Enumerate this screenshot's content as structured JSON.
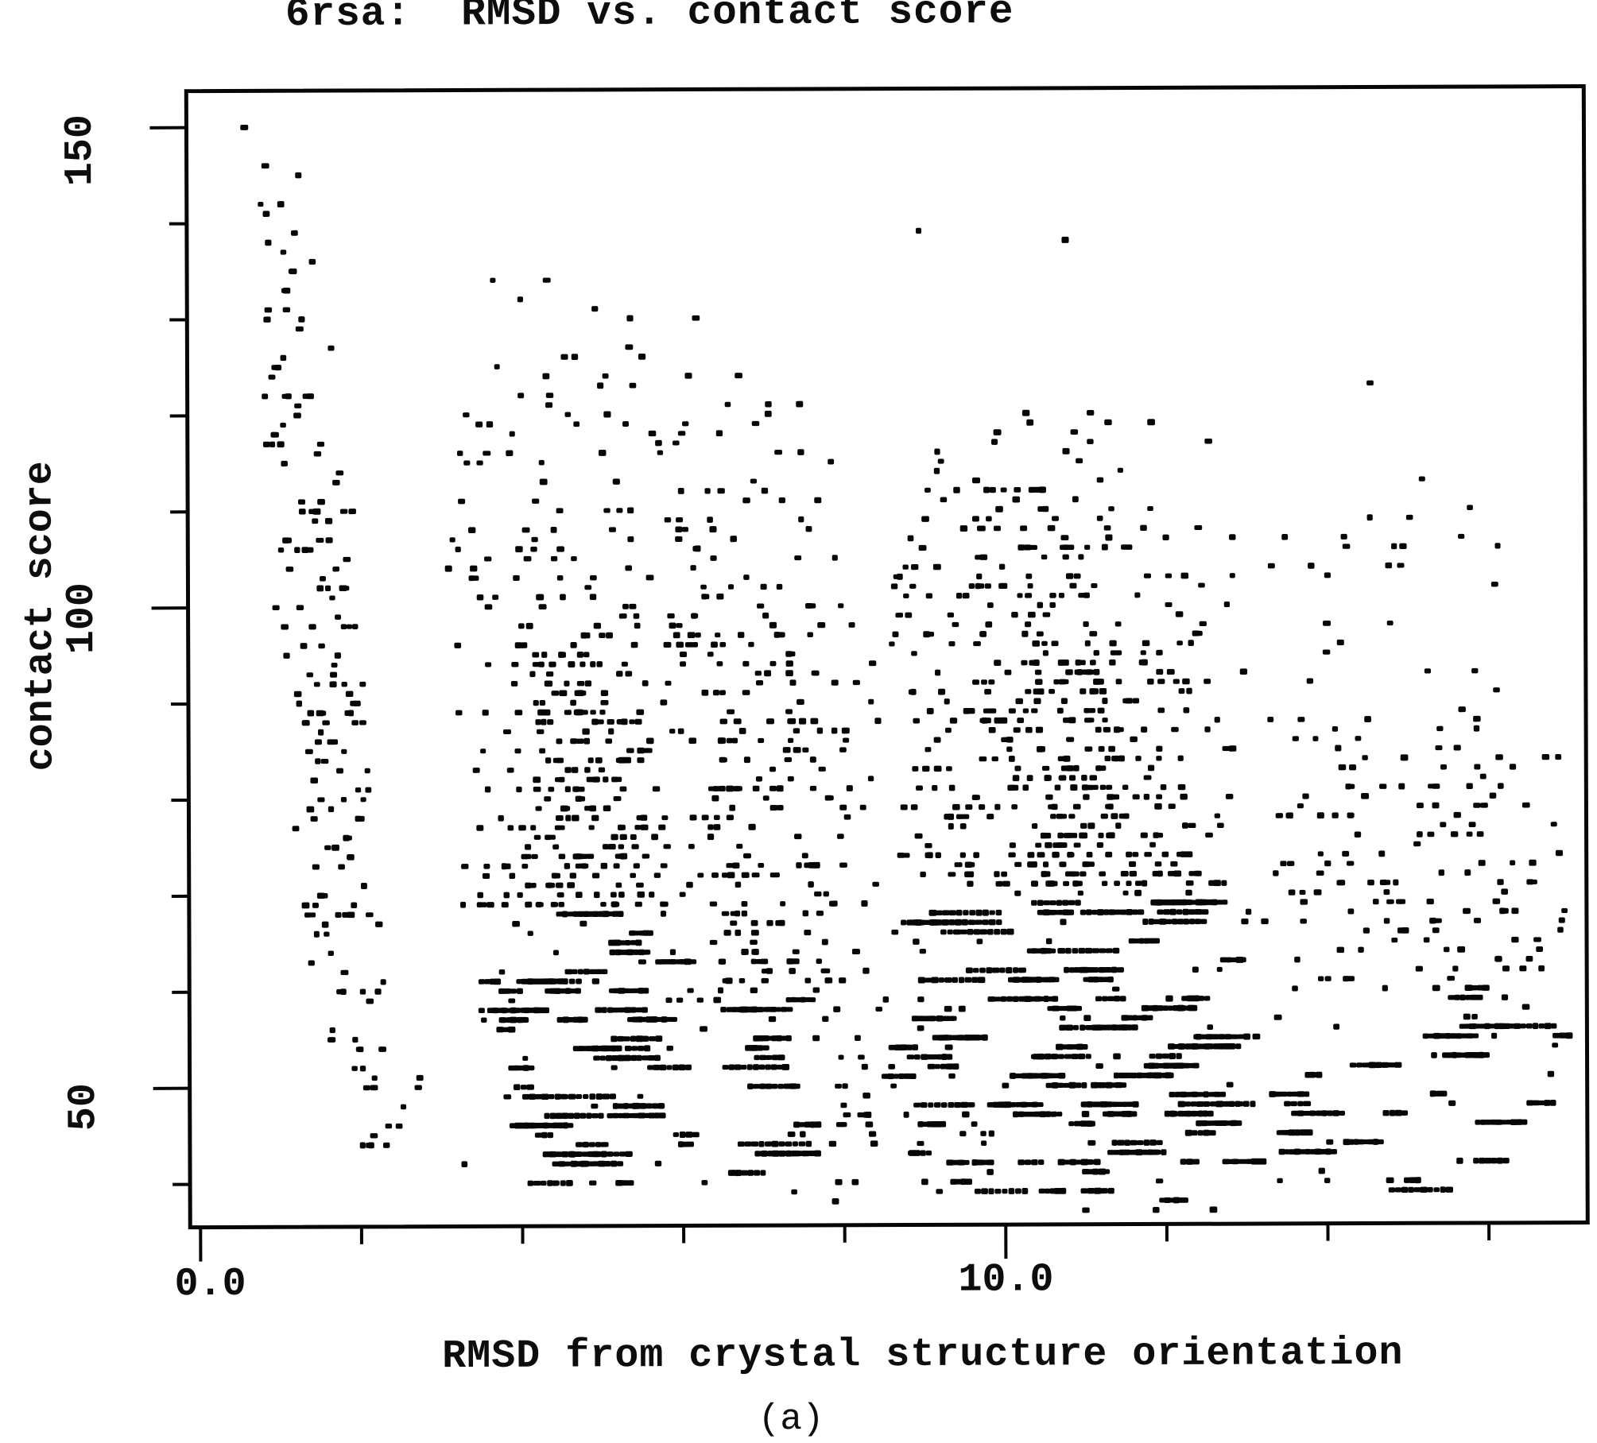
{
  "figure": {
    "caption": "(a)",
    "x_axis": {
      "tick_labels": [
        "0.0",
        "10.0"
      ],
      "labeled_tick_values": [
        0,
        10
      ]
    },
    "y_axis": {
      "tick_labels": [
        "50",
        "100",
        "150"
      ],
      "labeled_tick_values": [
        50,
        100,
        150
      ]
    }
  },
  "chart_data": {
    "type": "scatter",
    "title": "6rsa:  RMSD vs. contact score",
    "xlabel": "RMSD from crystal structure orientation",
    "ylabel": "contact score",
    "xlim": [
      0,
      17.2
    ],
    "ylim": [
      35.5,
      153.8
    ],
    "x_ticks": [
      0,
      2,
      4,
      6,
      8,
      10,
      12,
      14,
      16
    ],
    "x_major_ticks": [
      0,
      10
    ],
    "y_ticks": [
      40,
      50,
      60,
      70,
      80,
      90,
      100,
      110,
      120,
      130,
      140,
      150
    ],
    "y_major_ticks": [
      50,
      100,
      150
    ],
    "grid": false,
    "legend": false,
    "marker": "small-filled-square",
    "marker_color": "#060606",
    "n_points_approx": 2840,
    "y_values_are_integer_scores": true,
    "seed": 1337,
    "outliers": [
      [
        0.59,
        150
      ],
      [
        0.85,
        146
      ],
      [
        1.26,
        145
      ],
      [
        0.79,
        142
      ],
      [
        0.86,
        141
      ],
      [
        1.04,
        142
      ],
      [
        8.96,
        139
      ],
      [
        10.78,
        138
      ],
      [
        3.67,
        134
      ],
      [
        4.34,
        134
      ],
      [
        6.19,
        130
      ],
      [
        5.36,
        127
      ],
      [
        14.56,
        123
      ],
      [
        12.55,
        117
      ],
      [
        15.2,
        113
      ],
      [
        2.71,
        50
      ],
      [
        2.73,
        51
      ],
      [
        3.28,
        42
      ],
      [
        2.47,
        46
      ]
    ],
    "clusters": [
      {
        "name": "near-native-band",
        "bands": [
          {
            "y": [
              128,
              140
            ],
            "x": [
              0.7,
              1.6
            ],
            "n": 13,
            "mode": "uniform"
          },
          {
            "y": [
              115,
              128
            ],
            "x": [
              0.8,
              1.8
            ],
            "n": 22,
            "mode": "uniform"
          },
          {
            "y": [
              100,
              115
            ],
            "x": [
              0.9,
              1.95
            ],
            "n": 30,
            "mode": "uniform"
          },
          {
            "y": [
              88,
              100
            ],
            "x": [
              1.0,
              2.05
            ],
            "n": 30,
            "mode": "uniform"
          },
          {
            "y": [
              75,
              88
            ],
            "x": [
              1.15,
              2.15
            ],
            "n": 26,
            "mode": "uniform"
          },
          {
            "y": [
              62,
              75
            ],
            "x": [
              1.3,
              2.25
            ],
            "n": 25,
            "mode": "uniform"
          },
          {
            "y": [
              50,
              62
            ],
            "x": [
              1.6,
              2.4
            ],
            "n": 17,
            "mode": "uniform"
          },
          {
            "y": [
              44,
              50
            ],
            "x": [
              1.9,
              2.55
            ],
            "n": 9,
            "mode": "uniform"
          }
        ]
      },
      {
        "name": "mid-cluster",
        "bands": [
          {
            "y": [
              120,
              133
            ],
            "x": [
              3.3,
              6.3
            ],
            "n": 16,
            "mode": "uniform"
          },
          {
            "y": [
              108,
              120
            ],
            "x": [
              3.2,
              6.5
            ],
            "n": 38,
            "mode": "uniform"
          },
          {
            "y": [
              95,
              108
            ],
            "x": [
              3.1,
              6.4
            ],
            "n": 70,
            "mode": "uniform"
          },
          {
            "y": [
              82,
              95
            ],
            "x": [
              3.1,
              6.4
            ],
            "n": 105,
            "mode": "center"
          },
          {
            "y": [
              68,
              82
            ],
            "x": [
              3.2,
              6.35
            ],
            "n": 145,
            "mode": "center"
          },
          {
            "y": [
              55,
              68
            ],
            "x": [
              3.5,
              6.35
            ],
            "n": 165,
            "mode": "runs"
          },
          {
            "y": [
              45,
              55
            ],
            "x": [
              3.8,
              6.35
            ],
            "n": 130,
            "mode": "runs"
          },
          {
            "y": [
              38,
              45
            ],
            "x": [
              3.9,
              6.35
            ],
            "n": 60,
            "mode": "runs"
          }
        ]
      },
      {
        "name": "mid-cluster-2",
        "bands": [
          {
            "y": [
              105,
              125
            ],
            "x": [
              6.35,
              7.9
            ],
            "n": 20,
            "mode": "uniform"
          },
          {
            "y": [
              90,
              105
            ],
            "x": [
              6.35,
              7.9
            ],
            "n": 40,
            "mode": "uniform"
          },
          {
            "y": [
              75,
              90
            ],
            "x": [
              6.35,
              7.9
            ],
            "n": 60,
            "mode": "uniform"
          },
          {
            "y": [
              60,
              75
            ],
            "x": [
              6.35,
              7.9
            ],
            "n": 72,
            "mode": "uniform"
          },
          {
            "y": [
              48,
              60
            ],
            "x": [
              6.4,
              7.9
            ],
            "n": 66,
            "mode": "runs"
          },
          {
            "y": [
              38,
              48
            ],
            "x": [
              6.4,
              7.9
            ],
            "n": 46,
            "mode": "runs"
          }
        ]
      },
      {
        "name": "sparse-gap",
        "bands": [
          {
            "y": [
              88,
              110
            ],
            "x": [
              7.9,
              8.45
            ],
            "n": 8,
            "mode": "uniform"
          },
          {
            "y": [
              62,
              88
            ],
            "x": [
              7.9,
              8.45
            ],
            "n": 14,
            "mode": "uniform"
          },
          {
            "y": [
              48,
              62
            ],
            "x": [
              7.9,
              8.45
            ],
            "n": 12,
            "mode": "uniform"
          },
          {
            "y": [
              39,
              48
            ],
            "x": [
              7.9,
              8.45
            ],
            "n": 11,
            "mode": "uniform"
          }
        ]
      },
      {
        "name": "main-mass",
        "bands": [
          {
            "y": [
              108,
              120
            ],
            "x": [
              9.0,
              12.2
            ],
            "n": 28,
            "mode": "uniform"
          },
          {
            "y": [
              95,
              108
            ],
            "x": [
              8.6,
              12.9
            ],
            "n": 80,
            "mode": "uniform"
          },
          {
            "y": [
              82,
              95
            ],
            "x": [
              8.5,
              13.1
            ],
            "n": 140,
            "mode": "center"
          },
          {
            "y": [
              70,
              82
            ],
            "x": [
              8.5,
              13.2
            ],
            "n": 190,
            "mode": "center"
          },
          {
            "y": [
              58,
              70
            ],
            "x": [
              8.5,
              13.3
            ],
            "n": 240,
            "mode": "runs"
          },
          {
            "y": [
              48,
              58
            ],
            "x": [
              8.5,
              13.3
            ],
            "n": 265,
            "mode": "runs"
          },
          {
            "y": [
              41,
              48
            ],
            "x": [
              8.6,
              13.3
            ],
            "n": 180,
            "mode": "runs"
          },
          {
            "y": [
              37,
              41
            ],
            "x": [
              8.8,
              12.6
            ],
            "n": 35,
            "mode": "runs"
          },
          {
            "y": [
              88,
              112
            ],
            "x": [
              10.2,
              11.3
            ],
            "n": 40,
            "mode": "uniform"
          },
          {
            "y": [
              100,
              116
            ],
            "x": [
              9.6,
              10.5
            ],
            "n": 16,
            "mode": "uniform"
          }
        ]
      },
      {
        "name": "right-tail",
        "bands": [
          {
            "y": [
              90,
              112
            ],
            "x": [
              13.3,
              16.2
            ],
            "n": 24,
            "mode": "uniform"
          },
          {
            "y": [
              75,
              90
            ],
            "x": [
              13.3,
              16.9
            ],
            "n": 60,
            "mode": "uniform"
          },
          {
            "y": [
              60,
              75
            ],
            "x": [
              13.3,
              17.05
            ],
            "n": 80,
            "mode": "uniform"
          },
          {
            "y": [
              48,
              60
            ],
            "x": [
              13.3,
              17.1
            ],
            "n": 95,
            "mode": "runs"
          },
          {
            "y": [
              39,
              48
            ],
            "x": [
              13.3,
              16.9
            ],
            "n": 80,
            "mode": "runs"
          }
        ]
      }
    ]
  }
}
